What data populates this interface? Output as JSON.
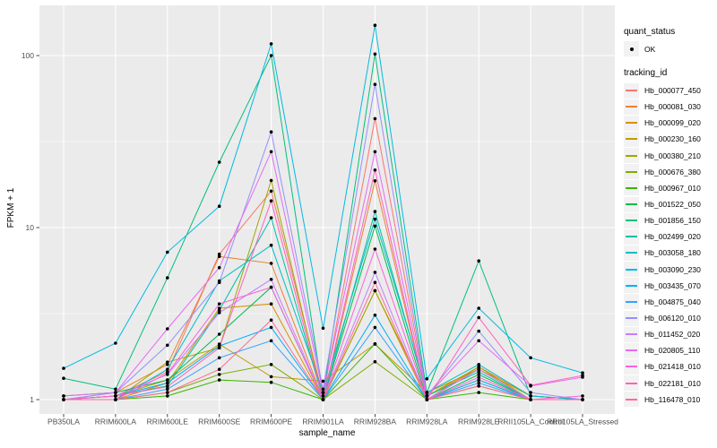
{
  "chart_data": {
    "type": "line",
    "title": "",
    "xlabel": "sample_name",
    "ylabel": "FPKM + 1",
    "y_scale": "log10",
    "y_ticks": [
      1,
      10,
      100
    ],
    "y_tick_labels": [
      "1",
      "10",
      "100"
    ],
    "y_minor_ticks": [
      3.162,
      31.62
    ],
    "ylim": [
      0.83,
      196
    ],
    "grid": true,
    "legend_position": "right",
    "panel_bg": "#EBEBEB",
    "grid_color": "#FFFFFF",
    "tick_color": "#333333",
    "axis_text_color": "#4D4D4D",
    "point_color": "#000000",
    "point_shape": "circle",
    "categories": [
      "PB350LA",
      "RRIM600LA",
      "RRIM600LE",
      "RRIM600SE",
      "RRIM600PE",
      "RRIM901LA",
      "RRIM928BA",
      "RRIM928LA",
      "RRIM928LE",
      "RRII105LA_Control",
      "RRII105LA_Stressed"
    ],
    "series": [
      {
        "name": "Hb_000077_450",
        "color": "#F8766D",
        "values": [
          1.0,
          1.05,
          1.45,
          7.0,
          16.3,
          1.05,
          43,
          1.05,
          1.5,
          1.0,
          1.0
        ]
      },
      {
        "name": "Hb_000081_030",
        "color": "#EA8331",
        "values": [
          1.0,
          1.1,
          1.6,
          6.8,
          6.2,
          1.0,
          18.7,
          1.0,
          1.55,
          1.05,
          1.0
        ]
      },
      {
        "name": "Hb_000099_020",
        "color": "#D89000",
        "values": [
          1.0,
          1.0,
          1.25,
          3.4,
          3.6,
          1.0,
          4.3,
          1.0,
          1.3,
          1.0,
          1.0
        ]
      },
      {
        "name": "Hb_000230_160",
        "color": "#C09B00",
        "values": [
          1.0,
          1.05,
          1.3,
          2.1,
          1.36,
          1.28,
          2.1,
          1.1,
          1.5,
          1.05,
          1.0
        ]
      },
      {
        "name": "Hb_000380_210",
        "color": "#A3A500",
        "values": [
          1.0,
          1.0,
          1.65,
          2.0,
          18.8,
          1.0,
          4.3,
          1.05,
          1.55,
          1.0,
          1.0
        ]
      },
      {
        "name": "Hb_000676_380",
        "color": "#7CAE00",
        "values": [
          1.0,
          1.0,
          1.1,
          1.4,
          1.6,
          1.0,
          1.66,
          1.0,
          1.2,
          1.0,
          1.0
        ]
      },
      {
        "name": "Hb_000967_010",
        "color": "#39B600",
        "values": [
          1.0,
          1.0,
          1.05,
          1.3,
          1.26,
          1.0,
          2.11,
          1.0,
          1.1,
          1.0,
          1.0
        ]
      },
      {
        "name": "Hb_001522_050",
        "color": "#00BB4E",
        "values": [
          1.05,
          1.1,
          1.3,
          2.4,
          4.5,
          1.0,
          10.2,
          1.0,
          1.4,
          1.0,
          1.0
        ]
      },
      {
        "name": "Hb_001856_150",
        "color": "#00BF7D",
        "values": [
          1.33,
          1.15,
          5.1,
          24,
          100,
          1.05,
          102,
          1.1,
          6.4,
          1.05,
          1.0
        ]
      },
      {
        "name": "Hb_002499_020",
        "color": "#00C1A3",
        "values": [
          1.0,
          1.05,
          1.2,
          3.3,
          11.4,
          1.0,
          12.4,
          1.05,
          1.45,
          1.0,
          1.0
        ]
      },
      {
        "name": "Hb_003058_180",
        "color": "#00BFC4",
        "values": [
          1.0,
          1.0,
          1.5,
          4.9,
          7.9,
          1.1,
          11.2,
          1.1,
          1.6,
          1.05,
          1.0
        ]
      },
      {
        "name": "Hb_003090_230",
        "color": "#00BAE0",
        "values": [
          1.52,
          2.13,
          7.2,
          13.3,
          117,
          2.6,
          150,
          1.32,
          3.4,
          1.75,
          1.43
        ]
      },
      {
        "name": "Hb_003435_070",
        "color": "#00B0F6",
        "values": [
          1.0,
          1.05,
          1.25,
          2.05,
          2.63,
          1.0,
          3.1,
          1.0,
          1.3,
          1.0,
          1.0
        ]
      },
      {
        "name": "Hb_004875_040",
        "color": "#35A2FF",
        "values": [
          1.0,
          1.0,
          1.15,
          1.75,
          2.2,
          1.0,
          2.63,
          1.0,
          1.25,
          1.0,
          1.0
        ]
      },
      {
        "name": "Hb_006120_010",
        "color": "#9590FF",
        "values": [
          1.0,
          1.1,
          2.07,
          4.8,
          36,
          1.15,
          68,
          1.05,
          2.5,
          1.1,
          1.0
        ]
      },
      {
        "name": "Hb_011452_020",
        "color": "#C77CFF",
        "values": [
          1.0,
          1.05,
          1.4,
          3.2,
          5.0,
          1.0,
          5.5,
          1.0,
          1.5,
          1.0,
          1.0
        ]
      },
      {
        "name": "Hb_020805_110",
        "color": "#E76BF3",
        "values": [
          1.05,
          1.1,
          2.58,
          5.85,
          27.6,
          1.1,
          27.6,
          1.05,
          2.2,
          1.2,
          1.35
        ]
      },
      {
        "name": "Hb_021418_010",
        "color": "#FA62DB",
        "values": [
          1.0,
          1.0,
          1.42,
          3.6,
          4.5,
          1.0,
          7.5,
          1.0,
          1.35,
          1.0,
          1.05
        ]
      },
      {
        "name": "Hb_022181_010",
        "color": "#FF62BC",
        "values": [
          1.0,
          1.05,
          1.19,
          2.0,
          14.3,
          1.0,
          21.6,
          1.0,
          3.0,
          1.21,
          1.38
        ]
      },
      {
        "name": "Hb_116478_010",
        "color": "#FF6A98",
        "values": [
          1.0,
          1.0,
          1.1,
          1.5,
          2.9,
          1.0,
          4.8,
          1.0,
          1.2,
          1.0,
          1.0
        ]
      }
    ]
  },
  "legend": {
    "quant_status": {
      "title": "quant_status",
      "items": [
        {
          "label": "OK",
          "symbol": "point"
        }
      ]
    },
    "tracking_id": {
      "title": "tracking_id"
    }
  }
}
